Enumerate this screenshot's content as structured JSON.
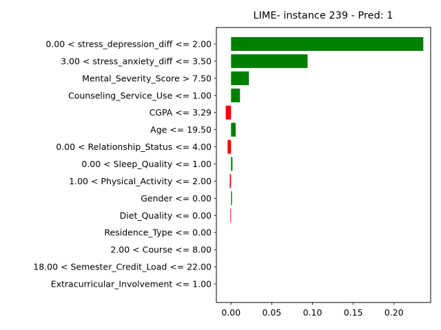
{
  "chart_data": {
    "type": "bar",
    "orientation": "horizontal",
    "title": "LIME- instance 239 - Pred: 1",
    "xlabel": "",
    "ylabel": "",
    "xlim": [
      -0.018,
      0.245
    ],
    "xticks": [
      "0.00",
      "0.05",
      "0.10",
      "0.15",
      "0.20"
    ],
    "xtick_values": [
      0.0,
      0.05,
      0.1,
      0.15,
      0.2
    ],
    "grid": false,
    "positive_color": "#008000",
    "negative_color": "#ff0000",
    "categories": [
      "0.00 < stress_depression_diff <= 2.00",
      "3.00 < stress_anxiety_diff <= 3.50",
      "Mental_Severity_Score > 7.50",
      "Counseling_Service_Use <= 1.00",
      "CGPA <= 3.29",
      "Age <= 19.50",
      "0.00 < Relationship_Status <= 4.00",
      "0.00 < Sleep_Quality <= 1.00",
      "1.00 < Physical_Activity <= 2.00",
      "Gender <= 0.00",
      "Diet_Quality <= 0.00",
      "Residence_Type <= 0.00",
      "2.00 < Course <= 8.00",
      "18.00 < Semester_Credit_Load <= 22.00",
      "Extracurricular_Involvement <= 1.00"
    ],
    "values": [
      0.236,
      0.094,
      0.022,
      0.011,
      -0.0065,
      0.0057,
      -0.0042,
      0.0018,
      -0.0015,
      0.0012,
      -0.0008,
      0.0,
      0.0,
      0.0,
      0.0
    ]
  }
}
